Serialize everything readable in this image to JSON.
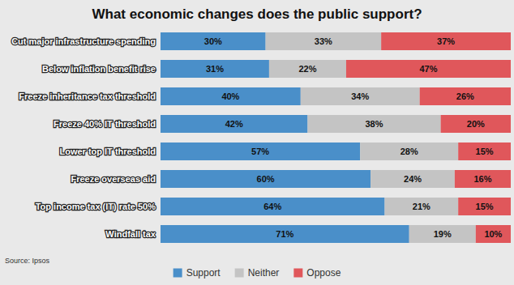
{
  "chart_data": {
    "type": "bar",
    "title": "What economic changes does the public support?",
    "annotation": "Source: Ipsos",
    "orientation": "horizontal",
    "stacked": true,
    "data_labels": true,
    "tick_labels": "y",
    "grid": false,
    "legend": "bottom",
    "xlim": [
      0,
      100
    ],
    "categories": [
      "Cut major infrastructure spending",
      "Below inflation benefit rise",
      "Freeze inheritance tax threshold",
      "Freeze 40% IT threshold",
      "Lower top IT threshold",
      "Freeze overseas aid",
      "Top income tax (IT) rate 50%",
      "Windfall tax"
    ],
    "series": [
      {
        "name": "Support",
        "color": "#4a8fc9",
        "values": [
          30,
          31,
          40,
          42,
          57,
          60,
          64,
          71
        ],
        "value_labels": [
          "30%",
          "31%",
          "40%",
          "42%",
          "57%",
          "60%",
          "64%",
          "71%"
        ]
      },
      {
        "name": "Neither",
        "color": "#c4c4c4",
        "values": [
          33,
          22,
          34,
          38,
          28,
          24,
          21,
          19
        ],
        "value_labels": [
          "33%",
          "22%",
          "34%",
          "38%",
          "28%",
          "24%",
          "21%",
          "19%"
        ]
      },
      {
        "name": "Oppose",
        "color": "#e0575b",
        "values": [
          37,
          47,
          26,
          20,
          15,
          16,
          15,
          10
        ],
        "value_labels": [
          "37%",
          "47%",
          "26%",
          "20%",
          "15%",
          "16%",
          "15%",
          "10%"
        ]
      }
    ]
  }
}
